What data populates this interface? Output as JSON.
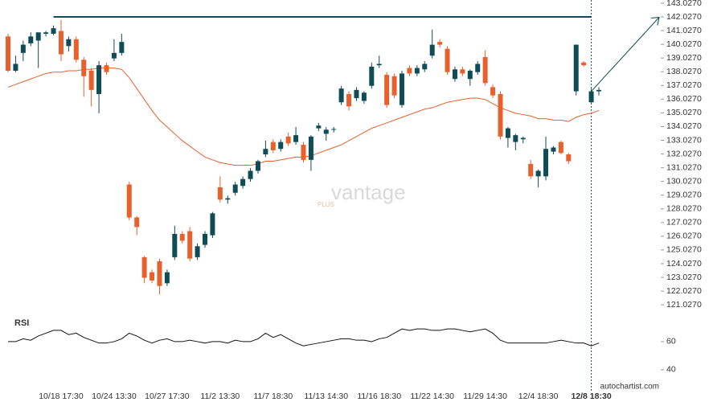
{
  "chart_data": {
    "type": "candlestick",
    "categories": [
      null,
      null,
      null,
      null,
      null,
      null,
      null,
      "10/18 17:30",
      null,
      null,
      null,
      null,
      null,
      null,
      "10/24 13:30",
      null,
      null,
      null,
      null,
      null,
      null,
      "10/27 17:30",
      null,
      null,
      null,
      null,
      null,
      null,
      "11/2 13:30",
      null,
      null,
      null,
      null,
      null,
      null,
      "11/7 18:30",
      null,
      null,
      null,
      null,
      null,
      null,
      "11/13 14:30",
      null,
      null,
      null,
      null,
      null,
      null,
      "11/16 18:30",
      null,
      null,
      null,
      null,
      null,
      null,
      "11/22 14:30",
      null,
      null,
      null,
      null,
      null,
      null,
      "11/29 14:30",
      null,
      null,
      null,
      null,
      null,
      null,
      "12/4 18:30",
      null,
      null,
      null,
      null,
      null,
      null,
      "12/8 18:30",
      null
    ],
    "open": [
      140.6,
      138.1,
      139.4,
      140.1,
      140.3,
      140.8,
      140.8,
      141.0,
      139.9,
      140.4,
      138.9,
      138.1,
      136.4,
      138.5,
      139.0,
      139.4,
      129.8,
      127.4,
      124.5,
      123.4,
      124.2,
      122.6,
      124.5,
      126.2,
      126.4,
      124.5,
      125.4,
      126.1,
      129.6,
      128.7,
      129.2,
      129.7,
      130.2,
      130.8,
      132.0,
      132.9,
      132.4,
      133.3,
      132.9,
      132.7,
      131.6,
      133.9,
      133.5,
      133.8,
      135.8,
      136.4,
      136.1,
      135.9,
      137.0,
      138.5,
      137.8,
      137.7,
      135.6,
      138.3,
      137.9,
      138.2,
      139.2,
      140.2,
      139.7,
      137.5,
      138.2,
      137.5,
      138.0,
      139.1,
      136.9,
      136.4,
      133.2,
      132.9,
      133.1,
      131.3,
      130.4,
      130.4,
      132.2,
      132.9,
      132.0,
      136.6,
      138.7,
      135.8,
      136.6
    ],
    "high": [
      140.8,
      139.2,
      140.3,
      140.9,
      140.8,
      141.0,
      141.4,
      141.8,
      140.6,
      140.6,
      139.1,
      138.3,
      138.8,
      138.7,
      140.4,
      140.8,
      130.0,
      127.5,
      124.6,
      123.6,
      124.4,
      123.6,
      126.8,
      126.4,
      126.7,
      125.5,
      126.4,
      127.8,
      130.4,
      129.0,
      130.0,
      130.4,
      131.0,
      131.6,
      133.0,
      133.1,
      133.1,
      133.6,
      134.0,
      132.9,
      133.4,
      134.3,
      134.0,
      134.0,
      137.0,
      136.6,
      136.9,
      136.6,
      138.7,
      139.2,
      138.0,
      137.9,
      138.1,
      138.5,
      138.5,
      138.8,
      141.1,
      140.4,
      139.9,
      138.4,
      138.4,
      138.2,
      138.8,
      139.6,
      137.1,
      136.6,
      134.0,
      133.5,
      133.3,
      131.6,
      130.9,
      133.3,
      132.6,
      133.0,
      132.1,
      140.0,
      138.8,
      136.8,
      136.9
    ],
    "low": [
      138.0,
      138.0,
      138.8,
      139.9,
      138.3,
      140.6,
      140.7,
      138.8,
      139.5,
      138.7,
      136.2,
      135.5,
      135.0,
      137.8,
      138.8,
      139.2,
      127.2,
      126.1,
      122.6,
      122.6,
      121.8,
      122.4,
      124.3,
      125.5,
      124.2,
      124.3,
      125.2,
      125.9,
      128.5,
      128.4,
      129.0,
      129.5,
      130.0,
      130.6,
      131.8,
      132.1,
      132.2,
      132.6,
      132.7,
      131.4,
      130.8,
      133.7,
      133.0,
      133.6,
      135.6,
      135.2,
      135.9,
      135.7,
      136.8,
      138.3,
      135.4,
      136.1,
      135.4,
      137.7,
      137.7,
      138.0,
      139.0,
      139.8,
      137.8,
      137.3,
      137.7,
      137.0,
      137.8,
      137.0,
      136.1,
      133.1,
      132.5,
      132.3,
      132.8,
      130.2,
      129.6,
      130.1,
      132.0,
      132.0,
      131.3,
      136.3,
      138.4,
      135.7,
      136.3
    ],
    "close": [
      138.1,
      138.6,
      140.0,
      140.6,
      140.9,
      140.9,
      141.2,
      139.3,
      140.4,
      138.9,
      137.7,
      136.7,
      138.5,
      138.0,
      139.4,
      140.2,
      127.4,
      126.7,
      123.0,
      122.8,
      122.4,
      123.4,
      126.2,
      125.7,
      124.4,
      125.3,
      126.2,
      127.7,
      128.7,
      128.8,
      129.8,
      130.2,
      130.8,
      131.5,
      132.4,
      132.3,
      132.9,
      132.8,
      133.4,
      131.6,
      133.3,
      134.1,
      133.8,
      133.85,
      136.8,
      135.5,
      136.7,
      136.5,
      138.4,
      138.6,
      135.6,
      136.3,
      137.9,
      137.9,
      138.3,
      138.6,
      140.0,
      140.0,
      138.0,
      138.2,
      137.9,
      138.1,
      138.6,
      137.2,
      136.3,
      133.3,
      133.9,
      133.4,
      133.2,
      130.4,
      130.8,
      132.4,
      132.5,
      132.1,
      131.5,
      140.0,
      138.5,
      136.6,
      136.7
    ],
    "ma": [
      136.9,
      137.1,
      137.3,
      137.5,
      137.7,
      137.9,
      138.0,
      138.0,
      138.1,
      138.1,
      138.2,
      138.2,
      138.3,
      138.3,
      138.3,
      138.2,
      137.6,
      136.8,
      136.0,
      135.2,
      134.5,
      134.0,
      133.5,
      133.0,
      132.6,
      132.2,
      131.8,
      131.6,
      131.4,
      131.3,
      131.2,
      131.2,
      131.2,
      131.3,
      131.5,
      131.5,
      131.6,
      131.7,
      131.8,
      131.8,
      131.9,
      132.1,
      132.3,
      132.5,
      132.7,
      133.0,
      133.3,
      133.6,
      133.9,
      134.1,
      134.3,
      134.5,
      134.7,
      134.9,
      135.1,
      135.3,
      135.4,
      135.6,
      135.8,
      135.9,
      136.0,
      136.1,
      136.1,
      136.0,
      135.7,
      135.4,
      135.2,
      135.0,
      134.9,
      134.8,
      134.6,
      134.6,
      134.5,
      134.5,
      134.4,
      134.7,
      134.9,
      135.0,
      135.2
    ],
    "rsi": [
      60,
      60,
      62,
      61,
      64,
      66,
      68,
      68,
      65,
      66,
      63,
      61,
      59,
      59,
      60,
      62,
      66,
      64,
      61,
      59,
      61,
      62,
      60,
      60,
      61,
      60,
      59,
      60,
      60,
      59,
      61,
      60,
      60,
      62,
      66,
      63,
      65,
      62,
      59,
      57,
      58,
      59,
      60,
      61,
      62,
      62,
      61,
      61,
      60,
      62,
      63,
      66,
      69,
      68,
      69,
      69,
      68,
      68,
      69,
      69,
      68,
      67,
      68,
      69,
      66,
      61,
      59,
      59,
      59,
      59,
      59,
      59,
      60,
      61,
      60,
      59,
      59,
      57,
      59
    ],
    "up_color": "#0f4c56",
    "down_color": "#e8602c",
    "ma_color": "#e8602c",
    "rsi_color": "#111111",
    "resistance_level": 142.027,
    "projection": [
      136.6,
      142.0
    ],
    "ylim": [
      120.39,
      143.26
    ],
    "yticks": [
      {
        "value": 143.027,
        "label": "143.0270"
      },
      {
        "value": 142.027,
        "label": "142.0270"
      },
      {
        "value": 141.027,
        "label": "141.0270"
      },
      {
        "value": 140.027,
        "label": "140.0270"
      },
      {
        "value": 139.027,
        "label": "139.0270"
      },
      {
        "value": 138.027,
        "label": "138.0270"
      },
      {
        "value": 137.027,
        "label": "137.0270"
      },
      {
        "value": 136.027,
        "label": "136.0270"
      },
      {
        "value": 135.027,
        "label": "135.0270"
      },
      {
        "value": 134.027,
        "label": "134.0270"
      },
      {
        "value": 133.027,
        "label": "133.0270"
      },
      {
        "value": 132.027,
        "label": "132.0270"
      },
      {
        "value": 131.027,
        "label": "131.0270"
      },
      {
        "value": 130.027,
        "label": "130.0270"
      },
      {
        "value": 129.027,
        "label": "129.0270"
      },
      {
        "value": 128.027,
        "label": "128.0270"
      },
      {
        "value": 127.027,
        "label": "127.0270"
      },
      {
        "value": 126.027,
        "label": "126.0270"
      },
      {
        "value": 125.027,
        "label": "125.0270"
      },
      {
        "value": 124.027,
        "label": "124.0270"
      },
      {
        "value": 123.027,
        "label": "123.0270"
      },
      {
        "value": 122.027,
        "label": "122.0270"
      },
      {
        "value": 121.027,
        "label": "121.0270"
      }
    ],
    "rsi_label": "RSI",
    "rsi_ylim": [
      31.4,
      77.1
    ],
    "rsi_yticks": [
      60,
      40
    ],
    "watermark": "vantage",
    "watermark_sub": "PLUS",
    "source": "autochartist.com"
  }
}
